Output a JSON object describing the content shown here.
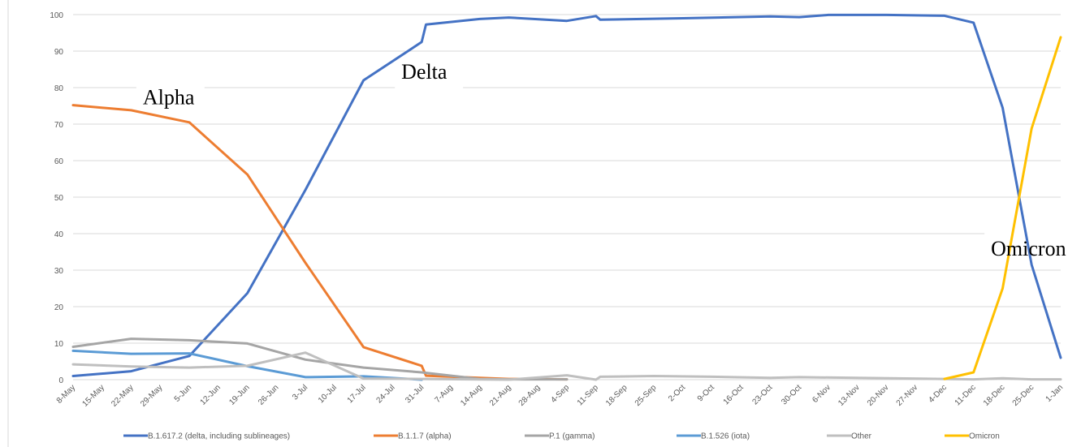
{
  "chart_data": {
    "type": "line",
    "ylim": [
      0,
      100
    ],
    "yticks": [
      0,
      10,
      20,
      30,
      40,
      50,
      60,
      70,
      80,
      90,
      100
    ],
    "grid": "horizontal",
    "legend_position": "bottom",
    "categories": [
      "8-May",
      "15-May",
      "22-May",
      "29-May",
      "5-Jun",
      "12-Jun",
      "19-Jun",
      "26-Jun",
      "3-Jul",
      "10-Jul",
      "17-Jul",
      "24-Jul",
      "31-Jul",
      "7-Aug",
      "14-Aug",
      "21-Aug",
      "28-Aug",
      "4-Sep",
      "11-Sep",
      "18-Sep",
      "25-Sep",
      "2-Oct",
      "9-Oct",
      "16-Oct",
      "23-Oct",
      "30-Oct",
      "6-Nov",
      "13-Nov",
      "20-Nov",
      "27-Nov",
      "4-Dec",
      "11-Dec",
      "18-Dec",
      "25-Dec",
      "1-Jan"
    ],
    "series": [
      {
        "name": "B.1.617.2 (delta, including sublineages)",
        "color": "#4472C4",
        "points": [
          [
            0,
            1
          ],
          [
            2,
            2.3
          ],
          [
            4,
            6.5
          ],
          [
            6,
            23.7
          ],
          [
            8,
            52
          ],
          [
            10,
            82
          ],
          [
            12,
            92.5
          ],
          [
            12.15,
            97.3
          ],
          [
            14,
            98.8
          ],
          [
            15,
            99.2
          ],
          [
            17,
            98.3
          ],
          [
            18,
            99.6
          ],
          [
            18.15,
            98.6
          ],
          [
            21,
            99
          ],
          [
            24,
            99.5
          ],
          [
            25,
            99.3
          ],
          [
            26,
            99.9
          ],
          [
            28,
            99.9
          ],
          [
            30,
            99.7
          ],
          [
            31,
            97.8
          ],
          [
            32,
            74.5
          ],
          [
            33,
            31.5
          ],
          [
            34,
            6
          ]
        ]
      },
      {
        "name": "B.1.1.7 (alpha)",
        "color": "#ED7D31",
        "points": [
          [
            0,
            75.2
          ],
          [
            2,
            73.8
          ],
          [
            4,
            70.5
          ],
          [
            6,
            56.2
          ],
          [
            8,
            32
          ],
          [
            10,
            8.9
          ],
          [
            12,
            3.8
          ],
          [
            12.15,
            1.1
          ],
          [
            14,
            0.5
          ],
          [
            15,
            0.2
          ],
          [
            17,
            0.1
          ]
        ]
      },
      {
        "name": "P.1 (gamma)",
        "color": "#A5A5A5",
        "points": [
          [
            0,
            9
          ],
          [
            2,
            11.2
          ],
          [
            4,
            10.8
          ],
          [
            6,
            9.9
          ],
          [
            8,
            5.5
          ],
          [
            10,
            3.3
          ],
          [
            12,
            2
          ],
          [
            14,
            0.2
          ],
          [
            15,
            0.1
          ],
          [
            17,
            0.1
          ]
        ]
      },
      {
        "name": "B.1.526 (iota)",
        "color": "#5B9BD5",
        "points": [
          [
            0,
            7.9
          ],
          [
            2,
            7.1
          ],
          [
            4,
            7.2
          ],
          [
            6,
            3.7
          ],
          [
            8,
            0.7
          ],
          [
            10,
            0.9
          ],
          [
            12,
            0
          ]
        ]
      },
      {
        "name": "Other",
        "color": "#BFBFBF",
        "points": [
          [
            0,
            4.2
          ],
          [
            2,
            3.6
          ],
          [
            4,
            3.3
          ],
          [
            6,
            3.8
          ],
          [
            8,
            7.4
          ],
          [
            10,
            0.3
          ],
          [
            12,
            0.2
          ],
          [
            15,
            0
          ],
          [
            17,
            1.2
          ],
          [
            18,
            0
          ],
          [
            18.15,
            0.8
          ],
          [
            20,
            1
          ],
          [
            22,
            0.8
          ],
          [
            24,
            0.5
          ],
          [
            25,
            0.7
          ],
          [
            31,
            0.1
          ],
          [
            32,
            0.4
          ],
          [
            33,
            0.1
          ],
          [
            34,
            0.1
          ]
        ]
      },
      {
        "name": "Omicron",
        "color": "#FFC000",
        "points": [
          [
            30,
            0.2
          ],
          [
            31,
            2
          ],
          [
            32,
            25
          ],
          [
            33,
            68.8
          ],
          [
            34,
            93.8
          ]
        ]
      }
    ],
    "annotations": [
      {
        "text": "Alpha",
        "at_x": 2.4,
        "at_y": 75.5
      },
      {
        "text": "Delta",
        "at_x": 11.3,
        "at_y": 82.5
      },
      {
        "text": "Omicron",
        "at_x": 31.6,
        "at_y": 34
      }
    ]
  }
}
